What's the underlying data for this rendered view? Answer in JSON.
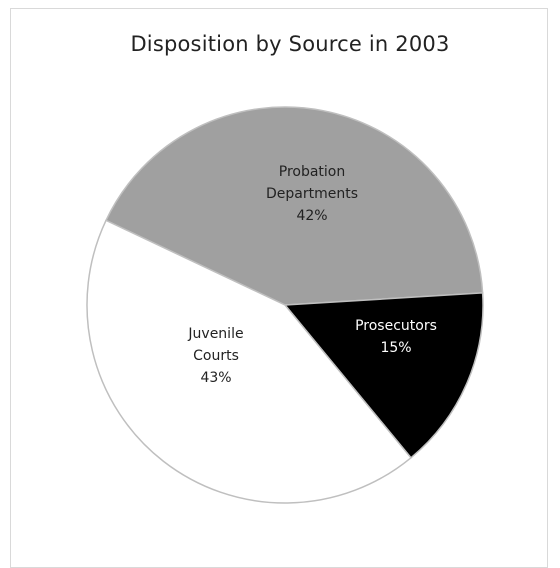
{
  "chart_data": {
    "type": "pie",
    "title": "Disposition by Source in 2003",
    "slices": [
      {
        "label_lines": [
          "Probation",
          "Departments"
        ],
        "value": 42,
        "value_label": "42%",
        "color": "#a0a0a0",
        "text_color": "#222222"
      },
      {
        "label_lines": [
          "Prosecutors"
        ],
        "value": 15,
        "value_label": "15%",
        "color": "#000000",
        "text_color": "#ffffff"
      },
      {
        "label_lines": [
          "Juvenile",
          "Courts"
        ],
        "value": 43,
        "value_label": "43%",
        "color": "#ffffff",
        "text_color": "#222222"
      }
    ],
    "start_angle_deg": -3.5,
    "legend": "none"
  }
}
